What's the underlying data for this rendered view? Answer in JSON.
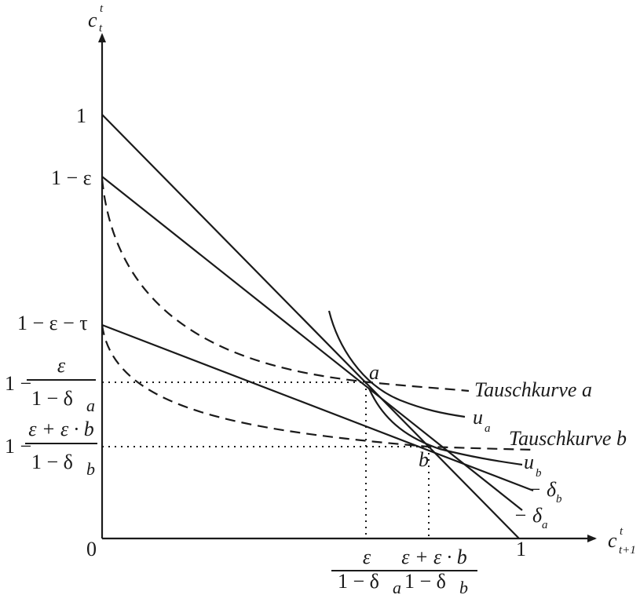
{
  "axes": {
    "y_label": {
      "base": "c",
      "sup": "t",
      "sub": "t"
    },
    "x_label": {
      "base": "c",
      "sup": "t",
      "sub": "t+1"
    },
    "origin": "0"
  },
  "y_ticks": {
    "one": "1",
    "one_minus_eps": "1 − ε",
    "one_minus_eps_tau": "1 − ε − τ",
    "a_level": {
      "prefix": "1 −",
      "num": "ε",
      "den_pre": "1 − δ",
      "den_sub": "a"
    },
    "b_level": {
      "prefix": "1 −",
      "num": "ε + ε · b",
      "den_pre": "1 − δ",
      "den_sub": "b"
    }
  },
  "x_ticks": {
    "a_level": {
      "num": "ε",
      "den_pre": "1 − δ",
      "den_sub": "a"
    },
    "b_level": {
      "num": "ε + ε · b",
      "den_pre": "1 − δ",
      "den_sub": "b"
    },
    "one": "1"
  },
  "points": {
    "a": "a",
    "b": "b"
  },
  "curve_labels": {
    "tausch_a": "Tauschkurve a",
    "tausch_b": "Tauschkurve b",
    "u_a": {
      "base": "u",
      "sub": "a"
    },
    "u_b": {
      "base": "u",
      "sub": "b"
    },
    "slope_b": {
      "base": "− δ",
      "sub": "b"
    },
    "slope_a": {
      "base": "− δ",
      "sub": "a"
    }
  }
}
